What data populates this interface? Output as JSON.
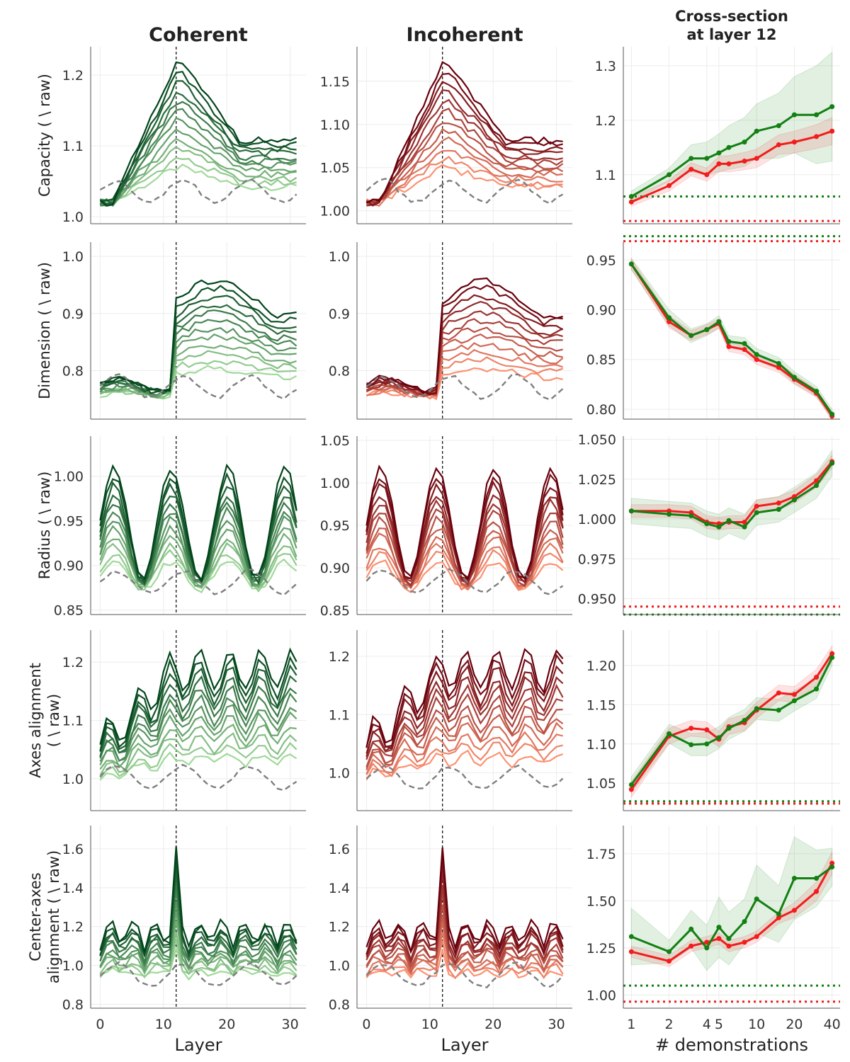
{
  "figure": {
    "column_titles": [
      "Coherent",
      "Incoherent"
    ],
    "right_title_lines": [
      "Cross-section",
      "at layer 12"
    ],
    "xlabel_layer": "Layer",
    "xlabel_demos": "# demonstrations",
    "colors": {
      "green": "#138013",
      "red": "#f11d1d",
      "gray": "#7f7f7f"
    }
  },
  "chart_data": [
    {
      "type": "line",
      "metric": "Capacity",
      "ylabel_lines": [
        "Capacity ( \\ raw)"
      ],
      "layer_ylim": {
        "coherent": [
          0.99,
          1.24
        ],
        "incoherent": [
          0.985,
          1.19
        ]
      },
      "layer_yticks": {
        "coherent": [
          "1.0",
          "1.1",
          "1.2"
        ],
        "incoherent": [
          "1.00",
          "1.05",
          "1.10",
          "1.15"
        ]
      },
      "cross": {
        "ylim": [
          1.01,
          1.335
        ],
        "yticks": [
          "1.1",
          "1.2",
          "1.3"
        ],
        "green": [
          1.06,
          1.1,
          1.13,
          1.13,
          1.14,
          1.15,
          1.16,
          1.18,
          1.19,
          1.21,
          1.21,
          1.225
        ],
        "red": [
          1.05,
          1.08,
          1.11,
          1.1,
          1.12,
          1.12,
          1.125,
          1.13,
          1.155,
          1.16,
          1.17,
          1.18
        ],
        "band_green": [
          0.01,
          0.012,
          0.025,
          0.03,
          0.035,
          0.04,
          0.045,
          0.05,
          0.06,
          0.07,
          0.09,
          0.1
        ],
        "band_red": [
          0.008,
          0.01,
          0.012,
          0.012,
          0.014,
          0.015,
          0.016,
          0.017,
          0.018,
          0.02,
          0.022,
          0.025
        ],
        "ref_green": 1.06,
        "ref_red": 1.015
      }
    },
    {
      "type": "line",
      "metric": "Dimension",
      "ylabel_lines": [
        "Dimension ( \\ raw)"
      ],
      "layer_ylim": {
        "coherent": [
          0.715,
          1.025
        ],
        "incoherent": [
          0.715,
          1.025
        ]
      },
      "layer_yticks": {
        "coherent": [
          "0.8",
          "0.9",
          "1.0"
        ],
        "incoherent": [
          "0.8",
          "0.9",
          "1.0"
        ]
      },
      "cross": {
        "ylim": [
          0.79,
          0.968
        ],
        "yticks": [
          "0.80",
          "0.85",
          "0.90",
          "0.95"
        ],
        "green": [
          0.946,
          0.892,
          0.874,
          0.88,
          0.888,
          0.868,
          0.866,
          0.855,
          0.846,
          0.832,
          0.818,
          0.795
        ],
        "red": [
          0.946,
          0.888,
          0.874,
          0.88,
          0.886,
          0.863,
          0.86,
          0.85,
          0.842,
          0.83,
          0.816,
          0.793
        ],
        "band_green": [
          0.006,
          0.008,
          0.007,
          0.006,
          0.006,
          0.006,
          0.006,
          0.006,
          0.006,
          0.006,
          0.005,
          0.005
        ],
        "band_red": [
          0.005,
          0.006,
          0.005,
          0.005,
          0.005,
          0.005,
          0.005,
          0.005,
          0.005,
          0.005,
          0.004,
          0.004
        ],
        "ref_green": 0.974,
        "ref_red": 0.969
      }
    },
    {
      "type": "line",
      "metric": "Radius",
      "ylabel_lines": [
        "Radius ( \\ raw)"
      ],
      "layer_ylim": {
        "coherent": [
          0.845,
          1.045
        ],
        "incoherent": [
          0.845,
          1.055
        ]
      },
      "layer_yticks": {
        "coherent": [
          "0.85",
          "0.90",
          "0.95",
          "1.00"
        ],
        "incoherent": [
          "0.85",
          "0.90",
          "0.95",
          "1.00",
          "1.05"
        ]
      },
      "cross": {
        "ylim": [
          0.94,
          1.052
        ],
        "yticks": [
          "0.950",
          "0.975",
          "1.000",
          "1.025",
          "1.050"
        ],
        "green": [
          1.005,
          1.003,
          1.002,
          0.997,
          0.995,
          0.999,
          0.995,
          1.004,
          1.006,
          1.012,
          1.021,
          1.035
        ],
        "red": [
          1.005,
          1.005,
          1.004,
          0.998,
          0.997,
          0.998,
          0.998,
          1.008,
          1.01,
          1.014,
          1.024,
          1.036
        ],
        "band_green": [
          0.008,
          0.008,
          0.008,
          0.008,
          0.008,
          0.008,
          0.008,
          0.008,
          0.008,
          0.008,
          0.008,
          0.008
        ],
        "band_red": [
          0.004,
          0.004,
          0.004,
          0.004,
          0.004,
          0.004,
          0.004,
          0.004,
          0.004,
          0.004,
          0.004,
          0.004
        ],
        "ref_green": 0.94,
        "ref_red": 0.945
      }
    },
    {
      "type": "line",
      "metric": "Axes alignment",
      "ylabel_lines": [
        "Axes alignment",
        "( \\ raw)"
      ],
      "layer_ylim": {
        "coherent": [
          0.945,
          1.255
        ],
        "incoherent": [
          0.935,
          1.245
        ]
      },
      "layer_yticks": {
        "coherent": [
          "1.0",
          "1.1",
          "1.2"
        ],
        "incoherent": [
          "1.0",
          "1.1",
          "1.2"
        ]
      },
      "cross": {
        "ylim": [
          1.015,
          1.245
        ],
        "yticks": [
          "1.05",
          "1.10",
          "1.15",
          "1.20"
        ],
        "green": [
          1.048,
          1.113,
          1.099,
          1.1,
          1.108,
          1.12,
          1.13,
          1.145,
          1.143,
          1.155,
          1.17,
          1.21
        ],
        "red": [
          1.042,
          1.11,
          1.12,
          1.118,
          1.106,
          1.122,
          1.127,
          1.143,
          1.165,
          1.163,
          1.185,
          1.215
        ],
        "band_green": [
          0.01,
          0.012,
          0.014,
          0.015,
          0.014,
          0.014,
          0.014,
          0.014,
          0.014,
          0.013,
          0.012,
          0.01
        ],
        "band_red": [
          0.01,
          0.01,
          0.01,
          0.01,
          0.01,
          0.01,
          0.01,
          0.01,
          0.01,
          0.01,
          0.01,
          0.01
        ],
        "ref_green": 1.027,
        "ref_red": 1.024
      }
    },
    {
      "type": "line",
      "metric": "Center-axes alignment",
      "ylabel_lines": [
        "Center-axes",
        "alignment ( \\ raw)"
      ],
      "layer_ylim": {
        "coherent": [
          0.78,
          1.72
        ],
        "incoherent": [
          0.78,
          1.72
        ]
      },
      "layer_yticks": {
        "coherent": [
          "0.8",
          "1.0",
          "1.2",
          "1.4",
          "1.6"
        ],
        "incoherent": [
          "0.8",
          "1.0",
          "1.2",
          "1.4",
          "1.6"
        ]
      },
      "cross": {
        "ylim": [
          0.93,
          1.9
        ],
        "yticks": [
          "1.00",
          "1.25",
          "1.50",
          "1.75"
        ],
        "green": [
          1.31,
          1.23,
          1.35,
          1.25,
          1.36,
          1.3,
          1.39,
          1.51,
          1.43,
          1.62,
          1.62,
          1.68
        ],
        "red": [
          1.23,
          1.18,
          1.26,
          1.28,
          1.3,
          1.26,
          1.28,
          1.31,
          1.41,
          1.45,
          1.55,
          1.7
        ],
        "band_green": [
          0.15,
          0.06,
          0.1,
          0.12,
          0.16,
          0.14,
          0.12,
          0.18,
          0.15,
          0.22,
          0.15,
          0.1
        ],
        "band_red": [
          0.03,
          0.03,
          0.03,
          0.03,
          0.03,
          0.03,
          0.03,
          0.03,
          0.03,
          0.04,
          0.05,
          0.06
        ],
        "ref_green": 1.05,
        "ref_red": 0.965
      }
    }
  ],
  "layer_axis": {
    "range": [
      -1.5,
      32.5
    ],
    "ticks": [
      "0",
      "10",
      "20",
      "30"
    ],
    "marker_layer": 12
  },
  "demo_axis": {
    "n": [
      1,
      2,
      3,
      4,
      5,
      6,
      8,
      10,
      15,
      20,
      30,
      40
    ],
    "ticks": [
      "1",
      "2",
      "4",
      "5",
      "10",
      "20",
      "40"
    ],
    "tick_values": [
      1,
      2,
      4,
      5,
      10,
      20,
      40
    ]
  }
}
